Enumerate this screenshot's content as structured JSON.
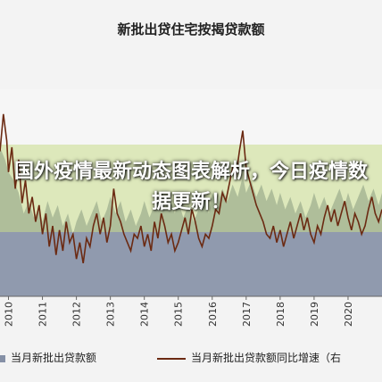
{
  "chart_data": {
    "type": "area",
    "title": "新批出贷住宅按揭贷款额",
    "x_tick_labels": [
      "2010",
      "2011",
      "2012",
      "2013",
      "2014",
      "2015",
      "2016",
      "2017",
      "2018",
      "2019",
      "2020"
    ],
    "x_range": [
      2009.75,
      2021.0
    ],
    "y_range": [
      0,
      100
    ],
    "grid": false,
    "legend_position": "bottom",
    "series": [
      {
        "name": "当月新批出贷款额",
        "kind": "area",
        "color": "#8590a6",
        "x": [
          2009.75,
          2009.9,
          2010.0,
          2010.15,
          2010.3,
          2010.45,
          2010.6,
          2010.75,
          2010.9,
          2011.0,
          2011.15,
          2011.3,
          2011.45,
          2011.6,
          2011.75,
          2011.9,
          2012.0,
          2012.15,
          2012.3,
          2012.45,
          2012.6,
          2012.75,
          2012.9,
          2013.0,
          2013.15,
          2013.3,
          2013.45,
          2013.6,
          2013.75,
          2013.9,
          2014.0,
          2014.15,
          2014.3,
          2014.45,
          2014.6,
          2014.75,
          2014.9,
          2015.0,
          2015.15,
          2015.3,
          2015.45,
          2015.6,
          2015.75,
          2015.9,
          2016.0,
          2016.15,
          2016.3,
          2016.45,
          2016.6,
          2016.75,
          2016.9,
          2017.0,
          2017.15,
          2017.3,
          2017.45,
          2017.6,
          2017.75,
          2017.9,
          2018.0,
          2018.15,
          2018.3,
          2018.45,
          2018.6,
          2018.75,
          2018.9,
          2019.0,
          2019.15,
          2019.3,
          2019.45,
          2019.6,
          2019.75,
          2019.9,
          2020.0,
          2020.15,
          2020.3,
          2020.45,
          2020.6,
          2020.75,
          2020.9,
          2021.0
        ],
        "values": [
          72,
          66,
          60,
          56,
          50,
          40,
          46,
          38,
          42,
          36,
          46,
          38,
          44,
          34,
          40,
          30,
          36,
          42,
          34,
          40,
          46,
          36,
          42,
          48,
          40,
          46,
          36,
          42,
          34,
          40,
          46,
          38,
          44,
          50,
          42,
          48,
          40,
          46,
          38,
          44,
          36,
          42,
          48,
          40,
          50,
          44,
          52,
          46,
          54,
          48,
          58,
          50,
          56,
          48,
          54,
          46,
          52,
          44,
          50,
          42,
          48,
          40,
          46,
          38,
          44,
          50,
          42,
          48,
          40,
          46,
          52,
          44,
          50,
          42,
          48,
          54,
          46,
          52,
          44,
          50
        ]
      },
      {
        "name": "当月新批出贷款额同比增速（右",
        "kind": "line",
        "color": "#6b2a12",
        "x": [
          2009.75,
          2009.85,
          2009.95,
          2010.0,
          2010.1,
          2010.2,
          2010.3,
          2010.4,
          2010.5,
          2010.6,
          2010.7,
          2010.8,
          2010.9,
          2011.0,
          2011.1,
          2011.2,
          2011.3,
          2011.4,
          2011.5,
          2011.6,
          2011.7,
          2011.8,
          2011.9,
          2012.0,
          2012.1,
          2012.2,
          2012.3,
          2012.4,
          2012.5,
          2012.6,
          2012.7,
          2012.8,
          2012.9,
          2013.0,
          2013.1,
          2013.2,
          2013.3,
          2013.4,
          2013.5,
          2013.6,
          2013.7,
          2013.8,
          2013.9,
          2014.0,
          2014.1,
          2014.2,
          2014.3,
          2014.4,
          2014.5,
          2014.6,
          2014.7,
          2014.8,
          2014.9,
          2015.0,
          2015.1,
          2015.2,
          2015.3,
          2015.4,
          2015.5,
          2015.6,
          2015.7,
          2015.8,
          2015.9,
          2016.0,
          2016.1,
          2016.2,
          2016.3,
          2016.4,
          2016.5,
          2016.6,
          2016.7,
          2016.8,
          2016.9,
          2017.0,
          2017.1,
          2017.2,
          2017.3,
          2017.4,
          2017.5,
          2017.6,
          2017.7,
          2017.8,
          2017.9,
          2018.0,
          2018.1,
          2018.2,
          2018.3,
          2018.4,
          2018.5,
          2018.6,
          2018.7,
          2018.8,
          2018.9,
          2019.0,
          2019.1,
          2019.2,
          2019.3,
          2019.4,
          2019.5,
          2019.6,
          2019.7,
          2019.8,
          2019.9,
          2020.0,
          2020.1,
          2020.2,
          2020.3,
          2020.4,
          2020.5,
          2020.6,
          2020.7,
          2020.8,
          2020.9,
          2021.0
        ],
        "values": [
          70,
          88,
          75,
          60,
          72,
          52,
          66,
          45,
          56,
          40,
          48,
          36,
          44,
          30,
          40,
          24,
          34,
          20,
          32,
          22,
          36,
          26,
          30,
          18,
          26,
          16,
          28,
          24,
          34,
          40,
          30,
          38,
          26,
          34,
          52,
          40,
          36,
          30,
          26,
          22,
          30,
          28,
          34,
          24,
          30,
          22,
          36,
          28,
          40,
          34,
          26,
          30,
          22,
          26,
          32,
          38,
          30,
          42,
          36,
          28,
          24,
          30,
          28,
          34,
          42,
          40,
          50,
          46,
          54,
          62,
          58,
          70,
          80,
          62,
          56,
          50,
          44,
          40,
          36,
          30,
          28,
          34,
          26,
          32,
          24,
          30,
          36,
          28,
          34,
          40,
          32,
          38,
          30,
          26,
          34,
          30,
          38,
          44,
          36,
          42,
          34,
          40,
          46,
          38,
          32,
          40,
          36,
          30,
          34,
          42,
          48,
          40,
          36,
          42
        ]
      }
    ]
  },
  "overlay": {
    "headline": "国外疫情最新动态图表解析，今日疫情数据更新！",
    "band_color": "#c8dc8a"
  }
}
